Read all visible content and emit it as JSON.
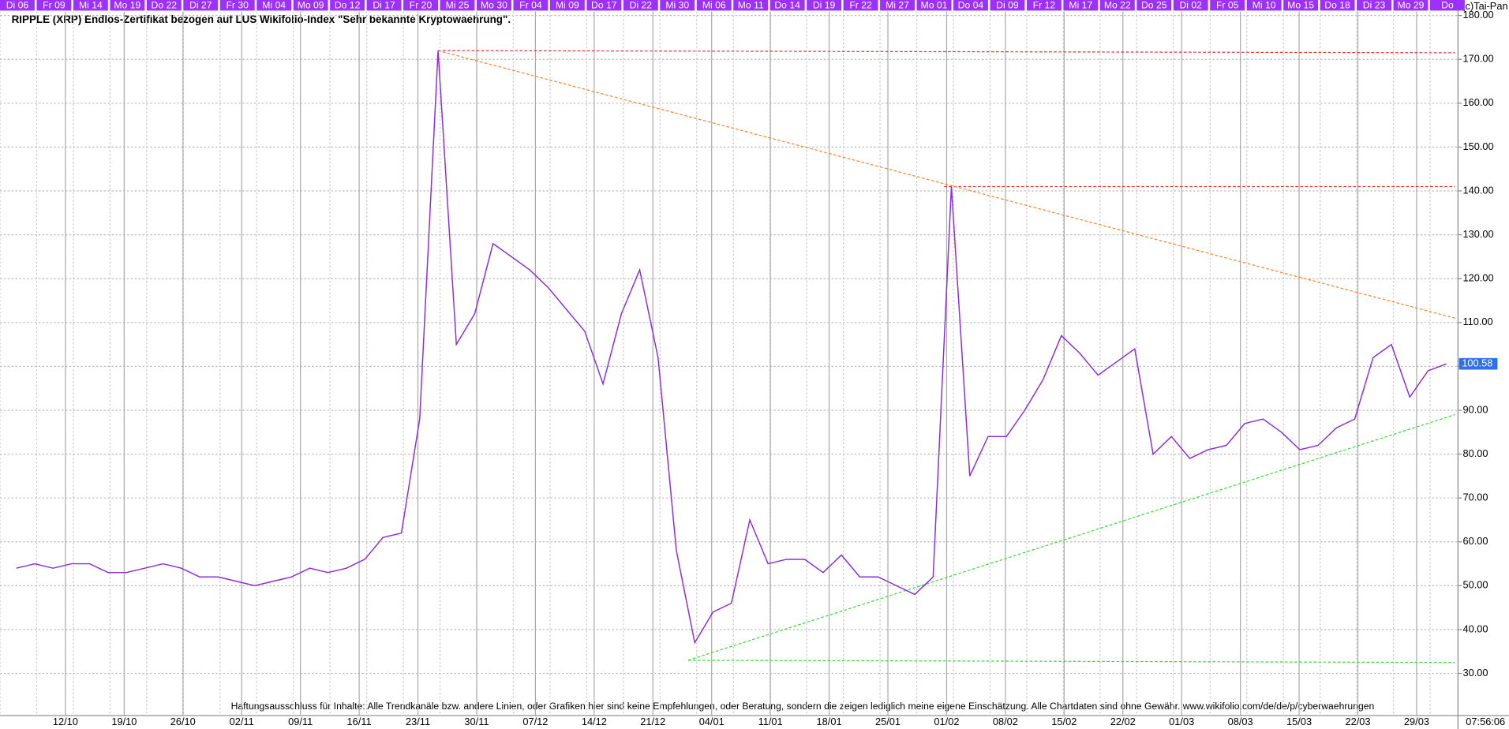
{
  "chart_data": {
    "type": "line",
    "title": "RIPPLE (XRP) Endlos-Zertifikat bezogen auf LUS Wikifolio-Index \"Sehr bekannte Kryptowaehrung\".",
    "copyright": "(c)Tai-Pan",
    "disclaimer": "Haftungsausschluss für Inhalte: Alle Trendkanäle bzw. andere Linien, oder Grafiken hier sind keine Empfehlungen, oder Beratung, sondern die zeigen lediglich meine eigene Einschätzung. Alle Chartdaten sind ohne Gewähr.  www.wikifolio.com/de/de/p/cyberwaehrungen",
    "time": "07:56:06",
    "color": "#8a2be2",
    "categories": [
      "Di 06",
      null,
      "Fr 09",
      null,
      "Mi 14",
      null,
      "Mo 19",
      null,
      "Do 22",
      null,
      "Di 27",
      null,
      "Fr 30",
      null,
      "Mi 04",
      null,
      "Mo 09",
      null,
      "Do 12",
      null,
      "Di 17",
      null,
      "Fr 20",
      null,
      "Mi 25",
      null,
      "Mo 30",
      null,
      "Fr 04",
      null,
      "Mi 09",
      null,
      "Do 17",
      null,
      "Di 22",
      null,
      "Mi 30",
      null,
      "Mi 06",
      null,
      "Mo 11",
      null,
      "Do 14",
      null,
      "Di 19",
      null,
      "Fr 22",
      null,
      "Mi 27",
      null,
      "Mo 01",
      null,
      "Do 04",
      null,
      "Di 09",
      null,
      "Fr 12",
      null,
      "Mi 17",
      null,
      "Mo 22",
      null,
      "Do 25",
      null,
      "Di 02",
      null,
      "Fr 05",
      null,
      "Mi 10",
      null,
      "Mo 15",
      null,
      "Do 18",
      null,
      "Di 23",
      null,
      "Mo 29",
      null,
      "Do"
    ],
    "values": [
      54,
      55,
      54,
      55,
      55,
      53,
      53,
      54,
      55,
      54,
      52,
      52,
      51,
      50,
      51,
      52,
      54,
      53,
      54,
      56,
      61,
      62,
      88,
      172,
      105,
      112,
      128,
      125,
      122,
      118,
      113,
      108,
      96,
      112,
      122,
      102,
      58,
      37,
      44,
      46,
      65,
      55,
      56,
      56,
      53,
      57,
      52,
      52,
      50,
      48,
      52,
      141,
      75,
      84,
      84,
      90,
      97,
      107,
      103,
      98,
      101,
      104,
      80,
      84,
      79,
      81,
      82,
      87,
      88,
      85,
      81,
      82,
      86,
      88,
      102,
      105,
      93,
      99,
      100.58
    ],
    "x_axis_labels": [
      "12/10",
      "19/10",
      "26/10",
      "02/11",
      "09/11",
      "16/11",
      "23/11",
      "30/11",
      "07/12",
      "14/12",
      "21/12",
      "04/01",
      "11/01",
      "18/01",
      "25/01",
      "01/02",
      "08/02",
      "15/02",
      "22/02",
      "01/03",
      "08/03",
      "15/03",
      "22/03",
      "29/03"
    ],
    "trend_lines": [
      {
        "color": "#e83030",
        "values": [
          172,
          171.5
        ]
      },
      {
        "color": "#e83030",
        "values": [
          141,
          141
        ]
      },
      {
        "color": "#ff7f2a",
        "values": [
          172,
          111
        ]
      },
      {
        "color": "#33dd33",
        "values": [
          33,
          89
        ]
      },
      {
        "color": "#33dd33",
        "values": [
          33,
          32.5
        ]
      }
    ],
    "ylim": [
      20.4,
      180.9
    ],
    "yticks": [
      {
        "value": 30,
        "label": "30.00"
      },
      {
        "value": 40,
        "label": "40.00"
      },
      {
        "value": 50,
        "label": "50.00"
      },
      {
        "value": 60,
        "label": "60.00"
      },
      {
        "value": 70,
        "label": "70.00"
      },
      {
        "value": 80,
        "label": "80.00"
      },
      {
        "value": 90,
        "label": "90.00"
      },
      {
        "value": 100,
        "label": "100.00"
      },
      {
        "value": 110,
        "label": "110.00"
      },
      {
        "value": 120,
        "label": "120.00"
      },
      {
        "value": 130,
        "label": "130.00"
      },
      {
        "value": 140,
        "label": "140.00"
      },
      {
        "value": 150,
        "label": "150.00"
      },
      {
        "value": 160,
        "label": "160.00"
      },
      {
        "value": 170,
        "label": "170.00"
      },
      {
        "value": 180,
        "label": "180.00"
      }
    ],
    "grid": true
  }
}
